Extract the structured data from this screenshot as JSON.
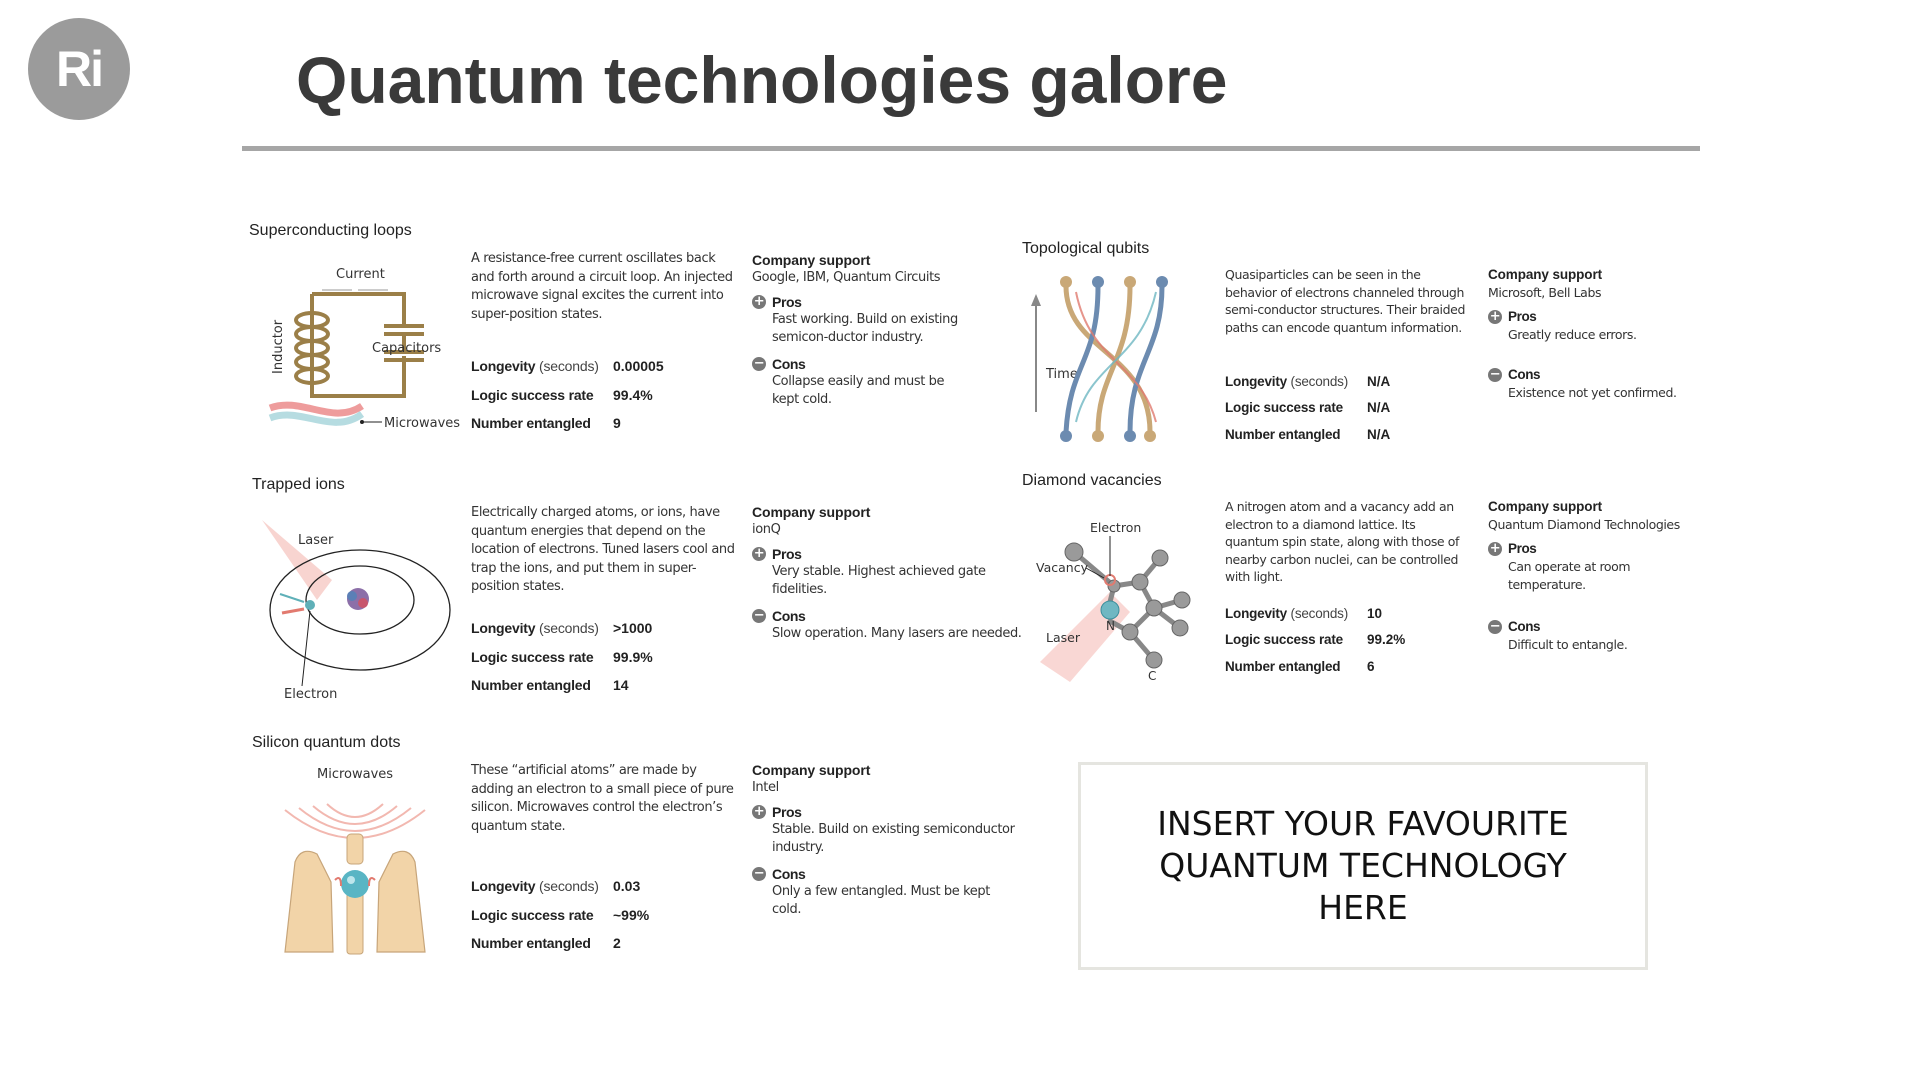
{
  "logo": "Ri",
  "title": "Quantum technologies galore",
  "insert_box_text": "INSERT YOUR FAVOURITE QUANTUM TECHNOLOGY HERE",
  "colors": {
    "icon_grey": "#777777",
    "rule": "#a6a6a6",
    "logo_bg": "#9b9b9b",
    "wire": "#9b7f48",
    "microwave_red": "#e87b7b",
    "microwave_blue": "#a9d6dc"
  },
  "labels": {
    "longevity": "Longevity",
    "longevity_unit": "(seconds)",
    "logic": "Logic success rate",
    "entangled": "Number entangled",
    "company": "Company support",
    "pros": "Pros",
    "cons": "Cons"
  },
  "cards": [
    {
      "title": "Superconducting loops",
      "description": "A resistance-free current oscillates back and forth around a circuit loop. An injected microwave signal excites the current into super-position states.",
      "longevity": "0.00005",
      "logic": "99.4%",
      "entangled": "9",
      "company": "Google, IBM, Quantum Circuits",
      "pros": "Fast working. Build on existing semicon-ductor industry.",
      "cons": "Collapse easily and must be kept cold.",
      "illus": {
        "current": "Current",
        "inductor": "Inductor",
        "capacitors": "Capacitors",
        "microwaves": "Microwaves"
      }
    },
    {
      "title": "Trapped ions",
      "description": "Electrically charged atoms, or ions, have quantum energies that depend on the location of electrons. Tuned lasers cool and trap the ions, and put them in super-position states.",
      "longevity": ">1000",
      "logic": "99.9%",
      "entangled": "14",
      "company": "ionQ",
      "pros": "Very stable. Highest achieved gate fidelities.",
      "cons": "Slow operation. Many lasers are needed.",
      "illus": {
        "laser": "Laser",
        "electron": "Electron"
      }
    },
    {
      "title": "Silicon quantum dots",
      "description": "These “artificial atoms” are made by adding an electron to a small piece of pure silicon. Microwaves control the electron’s quantum state.",
      "longevity": "0.03",
      "logic": "~99%",
      "entangled": "2",
      "company": "Intel",
      "pros": "Stable. Build on existing semiconductor industry.",
      "cons": "Only a few entangled. Must be kept cold.",
      "illus": {
        "microwaves": "Microwaves"
      }
    },
    {
      "title": "Topological qubits",
      "description": "Quasiparticles can be seen in the behavior of electrons channeled through semi-conductor structures. Their braided paths can encode quantum information.",
      "longevity": "N/A",
      "logic": "N/A",
      "entangled": "N/A",
      "company": "Microsoft, Bell Labs",
      "pros": "Greatly reduce errors.",
      "cons": "Existence not yet confirmed.",
      "illus": {
        "time": "Time"
      }
    },
    {
      "title": "Diamond vacancies",
      "description": "A nitrogen atom and a vacancy add an electron to a diamond lattice. Its quantum spin state, along with those of nearby carbon nuclei, can be controlled with light.",
      "longevity": "10",
      "logic": "99.2%",
      "entangled": "6",
      "company": "Quantum Diamond Technologies",
      "pros": "Can operate at room temperature.",
      "cons": "Difficult to entangle.",
      "illus": {
        "electron": "Electron",
        "vacancy": "Vacancy",
        "laser": "Laser",
        "n": "N",
        "c": "C"
      }
    }
  ]
}
